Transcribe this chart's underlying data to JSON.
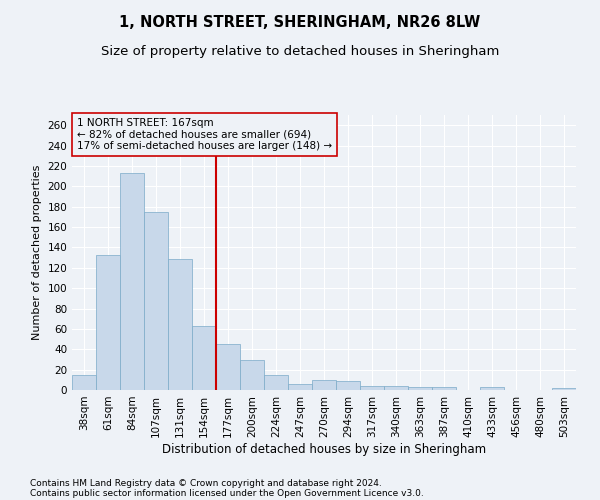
{
  "title": "1, NORTH STREET, SHERINGHAM, NR26 8LW",
  "subtitle": "Size of property relative to detached houses in Sheringham",
  "xlabel": "Distribution of detached houses by size in Sheringham",
  "ylabel": "Number of detached properties",
  "footnote1": "Contains HM Land Registry data © Crown copyright and database right 2024.",
  "footnote2": "Contains public sector information licensed under the Open Government Licence v3.0.",
  "property_label": "1 NORTH STREET: 167sqm",
  "annotation_line1": "← 82% of detached houses are smaller (694)",
  "annotation_line2": "17% of semi-detached houses are larger (148) →",
  "bar_color": "#c8d8ea",
  "bar_edge_color": "#7aaac8",
  "vline_color": "#cc0000",
  "annotation_box_edge": "#cc0000",
  "categories": [
    "38sqm",
    "61sqm",
    "84sqm",
    "107sqm",
    "131sqm",
    "154sqm",
    "177sqm",
    "200sqm",
    "224sqm",
    "247sqm",
    "270sqm",
    "294sqm",
    "317sqm",
    "340sqm",
    "363sqm",
    "387sqm",
    "410sqm",
    "433sqm",
    "456sqm",
    "480sqm",
    "503sqm"
  ],
  "values": [
    15,
    133,
    213,
    175,
    129,
    63,
    45,
    29,
    15,
    6,
    10,
    9,
    4,
    4,
    3,
    3,
    0,
    3,
    0,
    0,
    2
  ],
  "vline_position": 5.5,
  "ylim": [
    0,
    270
  ],
  "yticks": [
    0,
    20,
    40,
    60,
    80,
    100,
    120,
    140,
    160,
    180,
    200,
    220,
    240,
    260
  ],
  "bg_color": "#eef2f7",
  "grid_color": "#ffffff",
  "title_fontsize": 10.5,
  "subtitle_fontsize": 9.5,
  "ylabel_fontsize": 8,
  "xlabel_fontsize": 8.5,
  "tick_fontsize": 7.5,
  "annot_fontsize": 7.5,
  "footnote_fontsize": 6.5
}
